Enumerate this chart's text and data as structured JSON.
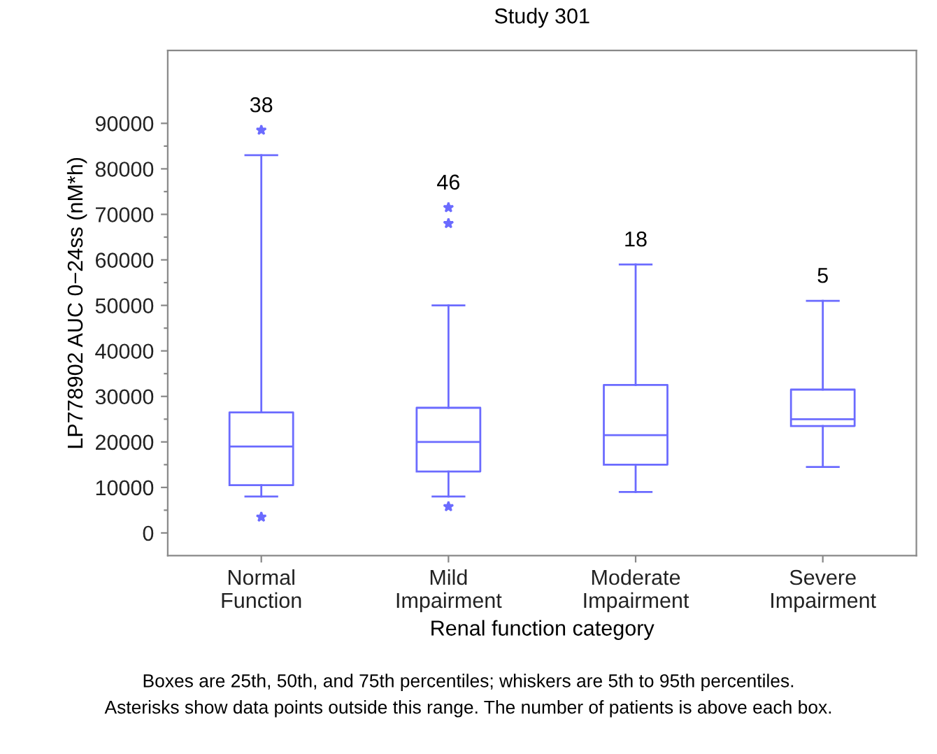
{
  "chart_data": {
    "type": "box",
    "title": "Study 301",
    "xlabel": "Renal function category",
    "ylabel": "LP778902 AUC 0−24ss (nM*h)",
    "categories": [
      "Normal\nFunction",
      "Mild\nImpairment",
      "Moderate\nImpairment",
      "Severe\nImpairment"
    ],
    "color": "#6b6bff",
    "marker": "star",
    "boxes": [
      {
        "low": 8000,
        "q1": 10500,
        "median": 19000,
        "q3": 26500,
        "high": 83000,
        "outliers": [
          88500,
          3500
        ]
      },
      {
        "low": 8000,
        "q1": 13500,
        "median": 20000,
        "q3": 27500,
        "high": 50000,
        "outliers": [
          71500,
          68000,
          5800
        ]
      },
      {
        "low": 9000,
        "q1": 15000,
        "median": 21500,
        "q3": 32500,
        "high": 59000
      },
      {
        "low": 14500,
        "q1": 23500,
        "median": 25000,
        "q3": 31500,
        "high": 51000
      }
    ],
    "ylim": [
      -5000,
      106000
    ],
    "yticks": [
      0,
      {
        "value": 5000,
        "label": null
      },
      10000,
      {
        "value": 15000,
        "label": null
      },
      20000,
      {
        "value": 25000,
        "label": null
      },
      30000,
      {
        "value": 35000,
        "label": null
      },
      40000,
      {
        "value": 45000,
        "label": null
      },
      50000,
      {
        "value": 55000,
        "label": null
      },
      60000,
      {
        "value": 65000,
        "label": null
      },
      70000,
      {
        "value": 75000,
        "label": null
      },
      80000,
      {
        "value": 85000,
        "label": null
      },
      90000
    ],
    "grid": false,
    "annotations": [
      "38",
      "46",
      "18",
      "5",
      "Boxes are 25th, 50th, and 75th percentiles; whiskers are 5th to 95th percentiles.",
      "Asterisks show data points outside this range. The number of patients is above each box."
    ]
  }
}
